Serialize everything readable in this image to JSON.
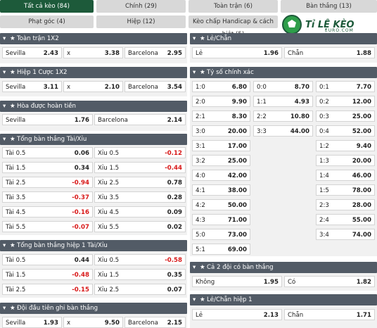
{
  "tabs": [
    {
      "label": "Tất cả kèo (84)"
    },
    {
      "label": "Chính (29)"
    },
    {
      "label": "Toàn trận (6)"
    },
    {
      "label": "Bàn thắng (13)"
    },
    {
      "label": "Phạt góc (4)"
    },
    {
      "label": "Hiệp (12)"
    },
    {
      "label": "Kèo chấp Handicap & cách biệt (5)"
    }
  ],
  "logo": {
    "text": "Tỉ LỆ KÈO",
    "sub": "EURO.COM"
  },
  "sections": {
    "full": {
      "title": "Toàn trận 1X2",
      "cells": [
        [
          "Sevilla",
          "2.43"
        ],
        [
          "x",
          "3.38"
        ],
        [
          "Barcelona",
          "2.95"
        ]
      ]
    },
    "h1": {
      "title": "Hiệp 1 Cược 1X2",
      "cells": [
        [
          "Sevilla",
          "3.11"
        ],
        [
          "x",
          "2.10"
        ],
        [
          "Barcelona",
          "3.54"
        ]
      ]
    },
    "dnb": {
      "title": "Hòa được hoàn tiền",
      "cells": [
        [
          "Sevilla",
          "1.76"
        ],
        [
          "Barcelona",
          "2.14"
        ]
      ]
    },
    "ou": {
      "title": "Tổng bàn thắng Tài/Xỉu",
      "rows": [
        [
          "Tài 0.5",
          "0.06",
          "Xỉu 0.5",
          "-0.12"
        ],
        [
          "Tài 1.5",
          "0.34",
          "Xỉu 1.5",
          "-0.44"
        ],
        [
          "Tài 2.5",
          "-0.94",
          "Xỉu 2.5",
          "0.78"
        ],
        [
          "Tài 3.5",
          "-0.37",
          "Xỉu 3.5",
          "0.28"
        ],
        [
          "Tài 4.5",
          "-0.16",
          "Xỉu 4.5",
          "0.09"
        ],
        [
          "Tài 5.5",
          "-0.07",
          "Xỉu 5.5",
          "0.02"
        ]
      ]
    },
    "ou1": {
      "title": "Tổng bàn thắng hiệp 1 Tài/Xỉu",
      "rows": [
        [
          "Tài 0.5",
          "0.44",
          "Xỉu 0.5",
          "-0.58"
        ],
        [
          "Tài 1.5",
          "-0.48",
          "Xỉu 1.5",
          "0.35"
        ],
        [
          "Tài 2.5",
          "-0.15",
          "Xỉu 2.5",
          "0.07"
        ]
      ]
    },
    "first": {
      "title": "Đội đầu tiên ghi bàn thắng",
      "cells": [
        [
          "Sevilla",
          "1.93"
        ],
        [
          "x",
          "9.50"
        ],
        [
          "Barcelona",
          "2.15"
        ]
      ]
    },
    "oe": {
      "title": "Lẻ/Chẵn",
      "cells": [
        [
          "Lẻ",
          "1.96"
        ],
        [
          "Chẵn",
          "1.88"
        ]
      ]
    },
    "cs": {
      "title": "Tỷ số chính xác",
      "col1": [
        [
          "1:0",
          "6.80"
        ],
        [
          "2:0",
          "9.90"
        ],
        [
          "2:1",
          "8.30"
        ],
        [
          "3:0",
          "20.00"
        ],
        [
          "3:1",
          "17.00"
        ],
        [
          "3:2",
          "25.00"
        ],
        [
          "4:0",
          "42.00"
        ],
        [
          "4:1",
          "38.00"
        ],
        [
          "4:2",
          "50.00"
        ],
        [
          "4:3",
          "71.00"
        ],
        [
          "5:0",
          "73.00"
        ],
        [
          "5:1",
          "69.00"
        ]
      ],
      "col2": [
        [
          "0:0",
          "8.70"
        ],
        [
          "1:1",
          "4.93"
        ],
        [
          "2:2",
          "10.80"
        ],
        [
          "3:3",
          "44.00"
        ]
      ],
      "col3": [
        [
          "0:1",
          "7.70"
        ],
        [
          "0:2",
          "12.00"
        ],
        [
          "0:3",
          "25.00"
        ],
        [
          "0:4",
          "52.00"
        ],
        [
          "1:2",
          "9.40"
        ],
        [
          "1:3",
          "20.00"
        ],
        [
          "1:4",
          "46.00"
        ],
        [
          "1:5",
          "78.00"
        ],
        [
          "2:3",
          "28.00"
        ],
        [
          "2:4",
          "55.00"
        ],
        [
          "3:4",
          "74.00"
        ]
      ]
    },
    "btts": {
      "title": "Cả 2 đội có bàn thắng",
      "cells": [
        [
          "Không",
          "1.95"
        ],
        [
          "Có",
          "1.82"
        ]
      ]
    },
    "oe1": {
      "title": "Lẻ/Chẵn hiệp 1",
      "cells": [
        [
          "Lẻ",
          "2.13"
        ],
        [
          "Chẵn",
          "1.71"
        ]
      ]
    }
  }
}
